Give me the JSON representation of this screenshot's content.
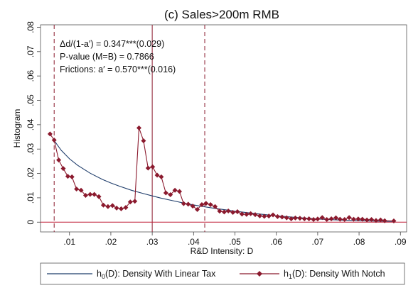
{
  "chart_data": {
    "type": "line",
    "title": "(c)  Sales>200m RMB",
    "xlabel": "R&D Intensity: D",
    "ylabel": "Histogram",
    "xlim": [
      0.003,
      0.0915
    ],
    "ylim": [
      -0.004,
      0.081
    ],
    "xticks": [
      ".01",
      ".02",
      ".03",
      ".04",
      ".05",
      ".06",
      ".07",
      ".08",
      ".09"
    ],
    "xtick_values": [
      0.01,
      0.02,
      0.03,
      0.04,
      0.05,
      0.06,
      0.07,
      0.08,
      0.09
    ],
    "yticks": [
      "0",
      ".01",
      ".02",
      ".03",
      ".04",
      ".05",
      ".06",
      ".07",
      ".08"
    ],
    "ytick_values": [
      0,
      0.01,
      0.02,
      0.03,
      0.04,
      0.05,
      0.06,
      0.07,
      0.08
    ],
    "annotations": [
      "Δd/(1-a′) = 0.347***(0.029)",
      "P-value (M=B) = 0.7866",
      "Frictions: a′ = 0.570***(0.016)"
    ],
    "vlines": [
      {
        "x": 0.0063,
        "style": "dashed"
      },
      {
        "x": 0.03,
        "style": "solid"
      },
      {
        "x": 0.0427,
        "style": "dashed"
      }
    ],
    "hline": {
      "y": 0
    },
    "legend_position": "bottom",
    "colors": {
      "h0": "#1f3d6b",
      "h1": "#8b1a2e",
      "axis": "#444444"
    },
    "series": [
      {
        "name": "h0(D): Density With Linear Tax",
        "name_parts": [
          "h",
          "0",
          "(D): Density With Linear Tax"
        ],
        "style": "line",
        "x": [
          0.0063,
          0.008,
          0.01,
          0.012,
          0.015,
          0.018,
          0.02,
          0.022,
          0.025,
          0.028,
          0.03,
          0.032,
          0.035,
          0.038,
          0.04,
          0.042,
          0.045,
          0.048,
          0.05,
          0.055,
          0.06,
          0.065,
          0.07,
          0.075,
          0.08,
          0.085,
          0.0885
        ],
        "y": [
          0.0335,
          0.0295,
          0.026,
          0.0233,
          0.0201,
          0.0175,
          0.0161,
          0.0148,
          0.0131,
          0.0117,
          0.0108,
          0.0099,
          0.0088,
          0.0077,
          0.0071,
          0.0065,
          0.0057,
          0.005,
          0.0045,
          0.0035,
          0.0026,
          0.0019,
          0.0013,
          0.0009,
          0.0006,
          0.0004,
          0.0003
        ]
      },
      {
        "name": "h1(D): Density With Notch",
        "name_parts": [
          "h",
          "1",
          "(D): Density With Notch"
        ],
        "style": "line-marker",
        "x": [
          0.0053,
          0.0063,
          0.0074,
          0.0085,
          0.0096,
          0.0106,
          0.0117,
          0.0128,
          0.0139,
          0.015,
          0.016,
          0.0171,
          0.0182,
          0.0193,
          0.0204,
          0.0214,
          0.0225,
          0.0236,
          0.0247,
          0.0258,
          0.0268,
          0.0279,
          0.029,
          0.0301,
          0.0312,
          0.0322,
          0.0333,
          0.0344,
          0.0355,
          0.0366,
          0.0376,
          0.0387,
          0.0398,
          0.0409,
          0.042,
          0.043,
          0.0441,
          0.0452,
          0.0463,
          0.0474,
          0.0484,
          0.0495,
          0.0506,
          0.0517,
          0.0528,
          0.0538,
          0.0549,
          0.056,
          0.0571,
          0.0582,
          0.0592,
          0.0603,
          0.0614,
          0.0625,
          0.0636,
          0.0646,
          0.0657,
          0.0668,
          0.0679,
          0.069,
          0.07,
          0.0711,
          0.0722,
          0.0733,
          0.0744,
          0.0754,
          0.0765,
          0.0776,
          0.0787,
          0.0798,
          0.0808,
          0.0819,
          0.083,
          0.0841,
          0.0852,
          0.0862,
          0.0884
        ],
        "y": [
          0.0362,
          0.0337,
          0.0255,
          0.022,
          0.0188,
          0.0186,
          0.0136,
          0.0131,
          0.011,
          0.0114,
          0.0114,
          0.0105,
          0.007,
          0.0064,
          0.0068,
          0.0058,
          0.0055,
          0.006,
          0.0083,
          0.0086,
          0.0387,
          0.0334,
          0.0222,
          0.0227,
          0.0193,
          0.0186,
          0.012,
          0.0113,
          0.0131,
          0.0126,
          0.0076,
          0.0074,
          0.0066,
          0.0052,
          0.0072,
          0.0077,
          0.0072,
          0.0064,
          0.0045,
          0.0042,
          0.0046,
          0.004,
          0.0043,
          0.0033,
          0.0032,
          0.0035,
          0.0031,
          0.0026,
          0.0024,
          0.0025,
          0.003,
          0.0023,
          0.0021,
          0.0018,
          0.0014,
          0.0017,
          0.0016,
          0.0014,
          0.0014,
          0.0011,
          0.0013,
          0.0019,
          0.0011,
          0.0014,
          0.0018,
          0.0012,
          0.0011,
          0.0019,
          0.0012,
          0.0013,
          0.0012,
          0.0009,
          0.0011,
          0.0007,
          0.0009,
          0.0006,
          0.0005
        ]
      }
    ]
  }
}
